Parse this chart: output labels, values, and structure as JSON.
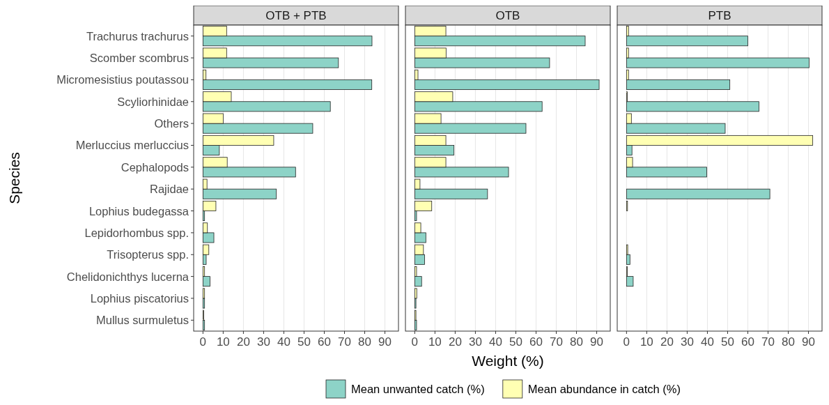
{
  "chart_data": [
    {
      "type": "bar",
      "orientation": "horizontal",
      "title": "OTB + PTB",
      "ylabel": "Species",
      "legend": "bottom",
      "grid": "x",
      "categories": [
        "Trachurus trachurus",
        "Scomber scombrus",
        "Micromesistius poutassou",
        "Scyliorhinidae",
        "Others",
        "Merluccius merluccius",
        "Cephalopods",
        "Rajidae",
        "Lophius budegassa",
        "Lepidorhombus spp.",
        "Trisopterus spp.",
        "Chelidonichthys lucerna",
        "Lophius piscatorius",
        "Mullus surmuletus"
      ],
      "xlim": [
        -4.6,
        96.7
      ],
      "xticks": [
        0,
        10,
        20,
        30,
        40,
        50,
        60,
        70,
        80,
        90
      ],
      "series": [
        {
          "name": "Mean unwanted catch (%)",
          "color": "#8dd3c7",
          "values": [
            83.6,
            67,
            83.5,
            63,
            54.3,
            8.1,
            45.8,
            36.3,
            0.8,
            5.4,
            1.6,
            3.5,
            0.8,
            0.8
          ]
        },
        {
          "name": "Mean abundance in catch (%)",
          "color": "#ffffb3",
          "values": [
            11.7,
            11.7,
            1.5,
            14,
            10,
            35,
            12,
            2,
            6.4,
            2.2,
            2.9,
            0.8,
            0.8,
            0.4
          ]
        }
      ]
    },
    {
      "type": "bar",
      "orientation": "horizontal",
      "title": "OTB",
      "xlabel": "Weight (%)",
      "grid": "x",
      "tick_labels": "x",
      "categories": [
        null,
        null,
        null,
        null,
        null,
        null,
        null,
        null,
        null,
        null,
        null,
        null,
        null,
        null
      ],
      "xlim": [
        -4.6,
        96.7
      ],
      "xticks": [
        0,
        10,
        20,
        30,
        40,
        50,
        60,
        70,
        80,
        90
      ],
      "series": [
        {
          "color": "#8dd3c7",
          "values": [
            84.3,
            66.7,
            91.2,
            63,
            55,
            19.4,
            46.4,
            36,
            0.9,
            5.5,
            4.9,
            3.4,
            0.6,
            0.9
          ]
        },
        {
          "color": "#ffffb3",
          "values": [
            15.4,
            15.5,
            1.6,
            18.8,
            13,
            15.4,
            15.4,
            2.6,
            8.4,
            3,
            4.3,
            0.9,
            1,
            0.6
          ]
        }
      ]
    },
    {
      "type": "bar",
      "orientation": "horizontal",
      "title": "PTB",
      "grid": "x",
      "tick_labels": "x",
      "categories": [
        null,
        null,
        null,
        null,
        null,
        null,
        null,
        null,
        null,
        null,
        null,
        null,
        null,
        null
      ],
      "xlim": [
        -4.6,
        96.7
      ],
      "xticks": [
        0,
        10,
        20,
        30,
        40,
        50,
        60,
        70,
        80,
        90
      ],
      "series": [
        {
          "color": "#8dd3c7",
          "values": [
            60,
            90.3,
            51.1,
            65.5,
            48.8,
            2.7,
            39.7,
            70.9,
            0,
            0,
            1.7,
            3.3,
            0,
            0
          ]
        },
        {
          "color": "#ffffb3",
          "values": [
            1,
            1,
            1,
            0.4,
            2.4,
            92.1,
            3,
            0,
            0.5,
            0,
            0.6,
            0.4,
            0,
            0
          ]
        }
      ]
    }
  ]
}
